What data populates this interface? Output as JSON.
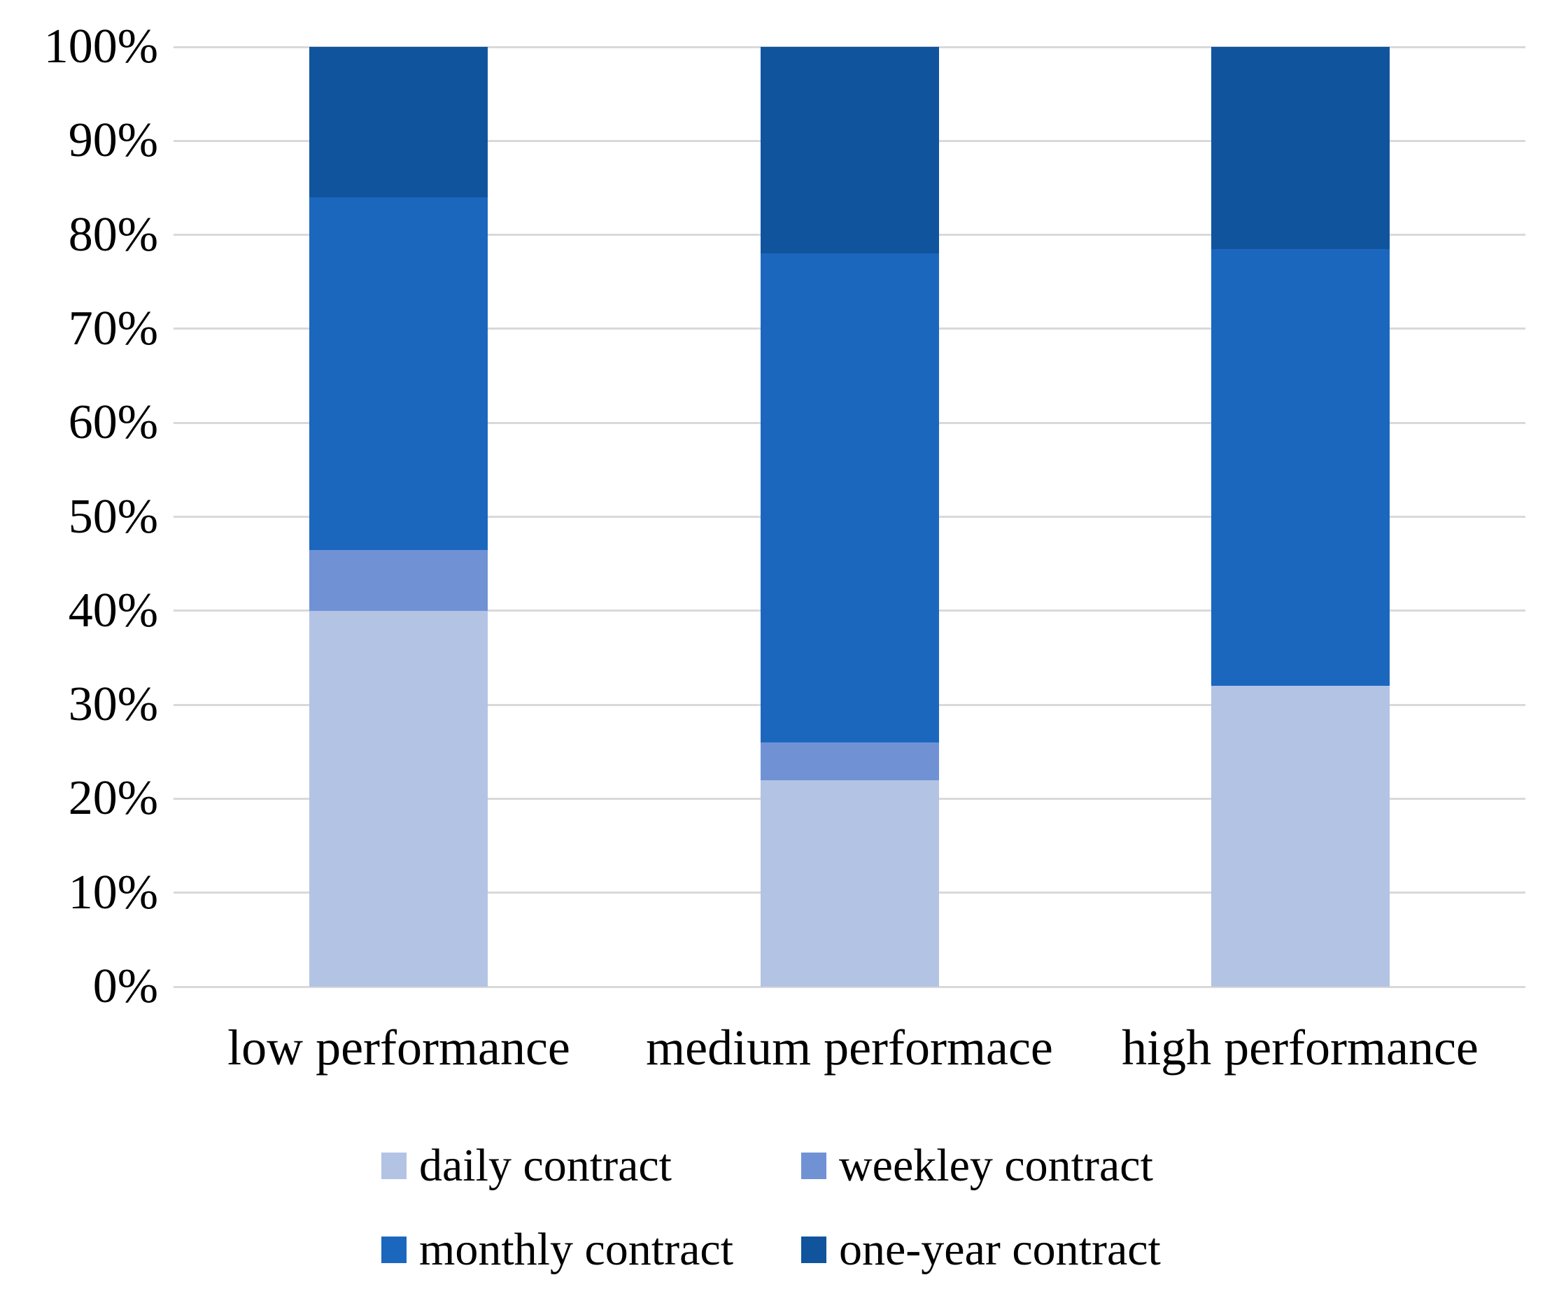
{
  "chart_data": {
    "type": "bar",
    "stacked": true,
    "unit": "percent",
    "title": "",
    "xlabel": "",
    "ylabel": "",
    "categories": [
      "low performance",
      "medium performace",
      "high performance"
    ],
    "series": [
      {
        "name": "daily contract",
        "color": "#b3c3e4",
        "values": [
          40,
          22,
          32
        ]
      },
      {
        "name": "weekley contract",
        "color": "#7092d5",
        "values": [
          6.5,
          4,
          0
        ]
      },
      {
        "name": "monthly contract",
        "color": "#1c67be",
        "values": [
          37.5,
          52,
          46.5
        ]
      },
      {
        "name": "one-year contract",
        "color": "#11549e",
        "values": [
          16,
          22,
          21.5
        ]
      }
    ],
    "yticks": [
      "0%",
      "10%",
      "20%",
      "30%",
      "40%",
      "50%",
      "60%",
      "70%",
      "80%",
      "90%",
      "100%"
    ],
    "ylim": [
      0,
      100
    ],
    "grid": "horizontal",
    "gridline_color": "#d9d9d9",
    "background_color": "#ffffff",
    "text_color": "#000000",
    "legend_position": "bottom",
    "legend_rows": [
      [
        "daily contract",
        "weekley contract"
      ],
      [
        "monthly contract",
        "one-year contract"
      ]
    ]
  }
}
